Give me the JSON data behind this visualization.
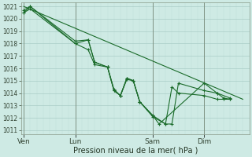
{
  "xlabel": "Pression niveau de la mer( hPa )",
  "bg_color": "#ceeae4",
  "grid_major_color": "#aaccc6",
  "grid_minor_color": "#bdddd8",
  "line_color": "#1a6b2a",
  "ylim": [
    1011,
    1021
  ],
  "yticks": [
    1011,
    1012,
    1013,
    1014,
    1015,
    1016,
    1017,
    1018,
    1019,
    1020,
    1021
  ],
  "xtick_positions": [
    0,
    4,
    10,
    14
  ],
  "xtick_labels": [
    "Ven",
    "Lun",
    "Sam",
    "Dim"
  ],
  "vline_positions": [
    0,
    4,
    10,
    14
  ],
  "xlim": [
    -0.2,
    17.5
  ],
  "series_x": [
    [
      0,
      0.5,
      4,
      5,
      5.5,
      6.5,
      7,
      7.5,
      8,
      8.5,
      9,
      10,
      10.5,
      14,
      15,
      16
    ],
    [
      0,
      0.5,
      4,
      5,
      5.5,
      6.5,
      7,
      7.5,
      8,
      8.5,
      9,
      10,
      11,
      11.5,
      12,
      14,
      15,
      15.5,
      16
    ],
    [
      0,
      0.5,
      4,
      5,
      5.5,
      6.5,
      7,
      7.5,
      8,
      8.5,
      9,
      10,
      11,
      11.5,
      12,
      14,
      15,
      15.5,
      16
    ],
    [
      0,
      17
    ]
  ],
  "series_y": [
    [
      1020.5,
      1021.0,
      1018.0,
      1018.3,
      1016.5,
      1016.1,
      1014.2,
      1013.8,
      1015.2,
      1015.0,
      1013.3,
      1012.2,
      1011.5,
      1014.8,
      1014.0,
      1013.6
    ],
    [
      1020.5,
      1020.8,
      1018.0,
      1017.5,
      1016.3,
      1016.1,
      1014.2,
      1013.8,
      1015.2,
      1015.0,
      1013.3,
      1012.1,
      1011.5,
      1014.5,
      1014.0,
      1013.8,
      1013.5,
      1013.5,
      1013.5
    ],
    [
      1020.7,
      1021.0,
      1018.2,
      1018.3,
      1016.5,
      1016.1,
      1014.3,
      1013.8,
      1015.1,
      1015.0,
      1013.3,
      1012.2,
      1011.5,
      1011.5,
      1014.8,
      1014.2,
      1014.0,
      1013.6,
      1013.5
    ],
    [
      1021.0,
      1013.5
    ]
  ],
  "marker_styles": [
    "D",
    "D",
    "D",
    null
  ],
  "linewidths": [
    0.9,
    0.9,
    0.9,
    0.9
  ]
}
